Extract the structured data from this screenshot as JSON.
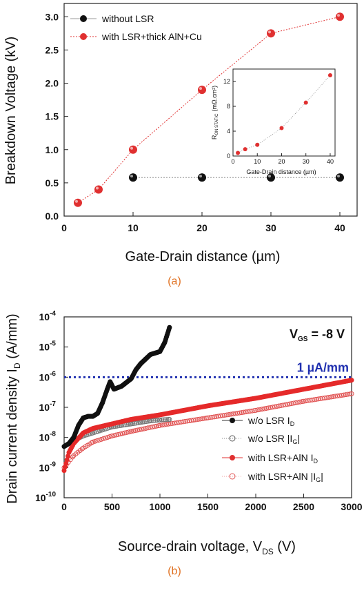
{
  "chart_data": [
    {
      "type": "line",
      "panel_label": "(a)",
      "xlabel": "Gate-Drain distance (µm)",
      "ylabel": "Breakdown Voltage (kV)",
      "xlim": [
        0,
        42.5
      ],
      "ylim": [
        0,
        3.2
      ],
      "xticks": [
        "0",
        "10",
        "20",
        "30",
        "40"
      ],
      "yticks": [
        "0.0",
        "0.5",
        "1.0",
        "1.5",
        "2.0",
        "2.5",
        "3.0"
      ],
      "legend_position": "top-left",
      "series": [
        {
          "name": "without LSR",
          "color": "#111111",
          "x": [
            10,
            20,
            30,
            40
          ],
          "y": [
            0.58,
            0.58,
            0.58,
            0.58
          ]
        },
        {
          "name": "with LSR+thick AlN+Cu",
          "color": "#e03030",
          "x": [
            2,
            5,
            10,
            20,
            30,
            40
          ],
          "y": [
            0.2,
            0.4,
            1.0,
            1.9,
            2.75,
            3.0
          ]
        }
      ],
      "inset": {
        "type": "scatter",
        "xlabel": "Gate-Drain distance (µm)",
        "ylabel_main": "R",
        "ylabel_sub": "ON STATIC",
        "ylabel_unit": "(mΩ.cm²)",
        "xlim": [
          0,
          42
        ],
        "ylim": [
          0,
          14
        ],
        "xticks": [
          "0",
          "10",
          "20",
          "30",
          "40"
        ],
        "yticks": [
          "0",
          "4",
          "8",
          "12"
        ],
        "x": [
          2,
          5,
          10,
          20,
          30,
          40
        ],
        "y": [
          0.5,
          1.1,
          1.8,
          4.5,
          8.6,
          13.0
        ]
      }
    },
    {
      "type": "scatter",
      "panel_label": "(b)",
      "xlabel": "Source-drain voltage, V",
      "xlabel_sub": "DS",
      "xlabel_unit": " (V)",
      "ylabel": "Drain current density I",
      "ylabel_sub": "D",
      "ylabel_unit": " (A/mm)",
      "xlim": [
        0,
        3000
      ],
      "ylim_log10": [
        -10,
        -4
      ],
      "yscale": "log",
      "xticks": [
        "0",
        "500",
        "1000",
        "1500",
        "2000",
        "2500",
        "3000"
      ],
      "yticks": [
        {
          "base": "10",
          "exp": "-4"
        },
        {
          "base": "10",
          "exp": "-5"
        },
        {
          "base": "10",
          "exp": "-6"
        },
        {
          "base": "10",
          "exp": "-7"
        },
        {
          "base": "10",
          "exp": "-8"
        },
        {
          "base": "10",
          "exp": "-9"
        },
        {
          "base": "10",
          "exp": "-10"
        }
      ],
      "annotation_vgs": {
        "main": "V",
        "sub": "GS",
        "rest": " = -8 V"
      },
      "reference_line": {
        "label": "1 µA/mm",
        "y_log10": -6,
        "color": "#2030b0"
      },
      "legend_position": "bottom-right",
      "legend": [
        {
          "label_main": "w/o LSR I",
          "label_sub": "D",
          "label_tail": "",
          "style": "filled-black"
        },
        {
          "label_main": "w/o LSR |I",
          "label_sub": "G",
          "label_tail": "|",
          "style": "open-gray"
        },
        {
          "label_main": "with LSR+AlN I",
          "label_sub": "D",
          "label_tail": "",
          "style": "filled-red"
        },
        {
          "label_main": "with LSR+AlN |I",
          "label_sub": "G",
          "label_tail": "|",
          "style": "open-red"
        }
      ],
      "series": [
        {
          "name": "w/o LSR ID",
          "x": [
            0,
            50,
            100,
            150,
            200,
            250,
            300,
            350,
            400,
            450,
            480,
            520,
            600,
            700,
            750,
            800,
            850,
            900,
            950,
            1000,
            1050,
            1100
          ],
          "y_log10": [
            -8.3,
            -8.2,
            -8.0,
            -7.6,
            -7.35,
            -7.3,
            -7.3,
            -7.2,
            -6.85,
            -6.4,
            -6.15,
            -6.4,
            -6.3,
            -6.05,
            -5.75,
            -5.55,
            -5.4,
            -5.25,
            -5.2,
            -5.15,
            -4.85,
            -4.35
          ]
        },
        {
          "name": "w/o LSR |IG|",
          "x": [
            0,
            100,
            200,
            300,
            400,
            500,
            600,
            700,
            800,
            900,
            1000,
            1100
          ],
          "y_log10": [
            -8.3,
            -8.1,
            -7.95,
            -7.85,
            -7.75,
            -7.65,
            -7.6,
            -7.55,
            -7.5,
            -7.45,
            -7.42,
            -7.4
          ]
        },
        {
          "name": "with LSR+AlN ID",
          "x": [
            0,
            50,
            100,
            200,
            300,
            500,
            700,
            1000,
            1500,
            2000,
            2500,
            3000
          ],
          "y_log10": [
            -9.1,
            -8.5,
            -8.2,
            -7.85,
            -7.7,
            -7.55,
            -7.4,
            -7.25,
            -6.95,
            -6.7,
            -6.4,
            -6.1
          ]
        },
        {
          "name": "with LSR+AlN |IG|",
          "x": [
            0,
            100,
            200,
            300,
            500,
            700,
            1000,
            1500,
            2000,
            2500,
            3000
          ],
          "y_log10": [
            -9.0,
            -8.6,
            -8.35,
            -8.15,
            -7.95,
            -7.8,
            -7.6,
            -7.35,
            -7.1,
            -6.8,
            -6.55
          ]
        }
      ]
    }
  ]
}
